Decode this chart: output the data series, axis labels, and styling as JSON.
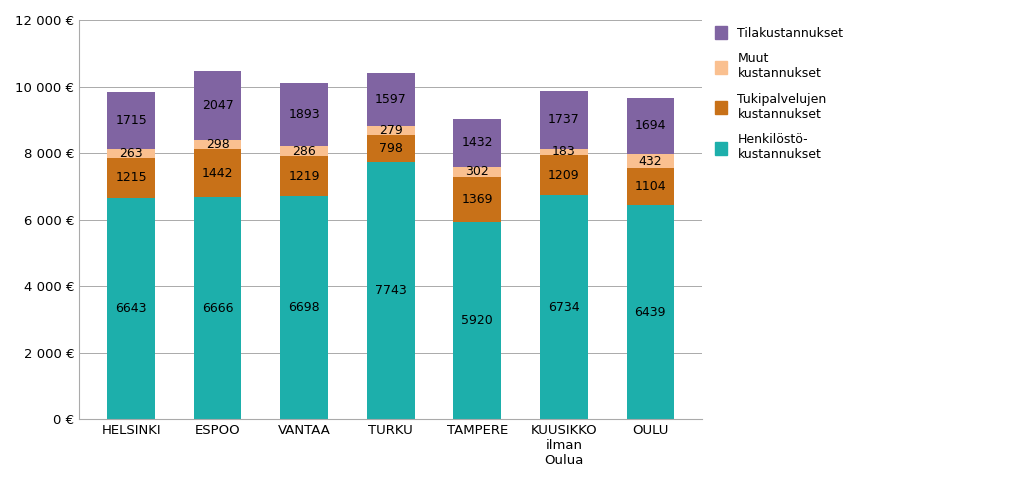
{
  "categories": [
    "HELSINKI",
    "ESPOO",
    "VANTAA",
    "TURKU",
    "TAMPERE",
    "KUUSIKKO\nilman\nOulua",
    "OULU"
  ],
  "henkilosto": [
    6643,
    6666,
    6698,
    7743,
    5920,
    6734,
    6439
  ],
  "tukipalvelut": [
    1215,
    1442,
    1219,
    798,
    1369,
    1209,
    1104
  ],
  "muut": [
    263,
    298,
    286,
    279,
    302,
    183,
    432
  ],
  "tila": [
    1715,
    2047,
    1893,
    1597,
    1432,
    1737,
    1694
  ],
  "color_henkilosto": "#1DAFAB",
  "color_tukipalvelut": "#C87118",
  "color_muut": "#FAC090",
  "color_tila": "#8064A2",
  "ylim": [
    0,
    12000
  ],
  "yticks": [
    0,
    2000,
    4000,
    6000,
    8000,
    10000,
    12000
  ],
  "ytick_labels": [
    "0 €",
    "2 000 €",
    "4 000 €",
    "6 000 €",
    "8 000 €",
    "10 000 €",
    "12 000 €"
  ],
  "bar_width": 0.55,
  "label_fontsize": 9,
  "tick_fontsize": 9.5,
  "legend_fontsize": 9
}
